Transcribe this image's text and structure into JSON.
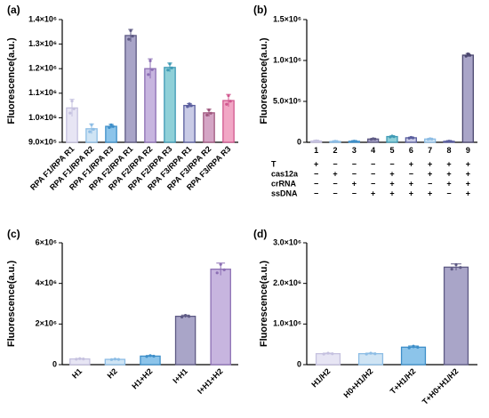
{
  "chart_data": [
    {
      "panel": "(a)",
      "type": "bar",
      "ylabel": "Fluorescence(a.u.)",
      "ylim": [
        900000,
        1400000
      ],
      "yticks": [
        900000,
        1000000,
        1100000,
        1200000,
        1300000,
        1400000
      ],
      "ytick_labels": [
        "9.0×10⁵",
        "1.0×10⁶",
        "1.1×10⁶",
        "1.2×10⁶",
        "1.3×10⁶",
        "1.4×10⁶"
      ],
      "categories": [
        "RPA F1/RPA R1",
        "RPA F1/RPA R2",
        "RPA F1/RPA R3",
        "RPA F2/RPA R1",
        "RPA F2/RPA R2",
        "RPA F2/RPA R3",
        "RPA F3/RPA R1",
        "RPA F3/RPA R2",
        "RPA F3/RPA R3"
      ],
      "values": [
        1040000,
        955000,
        965000,
        1335000,
        1200000,
        1205000,
        1050000,
        1020000,
        1070000
      ],
      "errors": [
        35000,
        20000,
        8000,
        25000,
        40000,
        18000,
        8000,
        15000,
        25000
      ],
      "colors": [
        "#e7e5f4",
        "#cfe4f4",
        "#8cc4ea",
        "#a9a5c8",
        "#c7b5df",
        "#8fd0d8",
        "#c9cbe6",
        "#d4a5c5",
        "#f1a7c5"
      ],
      "edge_colors": [
        "#c5c1df",
        "#8dbde5",
        "#3e8fc9",
        "#5e5a84",
        "#8c6fb4",
        "#3f9ab5",
        "#5a5e9e",
        "#a0587f",
        "#d1588f"
      ],
      "x_rotated_labels": true,
      "grid": false
    },
    {
      "panel": "(b)",
      "type": "bar",
      "ylabel": "Fluorescence(a.u.)",
      "ylim": [
        0,
        1500000
      ],
      "yticks": [
        0,
        500000,
        1000000,
        1500000
      ],
      "ytick_labels": [
        "0",
        "5.0×10⁵",
        "1.0×10⁶",
        "1.5×10⁶"
      ],
      "categories": [
        "1",
        "2",
        "3",
        "4",
        "5",
        "6",
        "7",
        "8",
        "9"
      ],
      "values": [
        15000,
        10000,
        12000,
        40000,
        70000,
        55000,
        40000,
        12000,
        1065000
      ],
      "errors": [
        3000,
        3000,
        3000,
        5000,
        8000,
        6000,
        5000,
        3000,
        20000
      ],
      "colors": [
        "#e7e5f4",
        "#cfe4f4",
        "#8cc4ea",
        "#a9a5c8",
        "#8fd0d8",
        "#c9cbe6",
        "#cfe4f4",
        "#c9cbe6",
        "#a9a5c8"
      ],
      "edge_colors": [
        "#c5c1df",
        "#8dbde5",
        "#3e8fc9",
        "#5e5a84",
        "#3f9ab5",
        "#5a5e9e",
        "#8dbde5",
        "#5a5e9e",
        "#4a466e"
      ],
      "condition_rows": [
        {
          "label": "T",
          "signs": [
            "+",
            "−",
            "−",
            "−",
            "−",
            "+",
            "+",
            "+",
            "+"
          ]
        },
        {
          "label": "cas12a",
          "signs": [
            "−",
            "+",
            "−",
            "−",
            "+",
            "−",
            "+",
            "+",
            "+"
          ]
        },
        {
          "label": "crRNA",
          "signs": [
            "−",
            "−",
            "+",
            "−",
            "+",
            "+",
            "−",
            "+",
            "+"
          ]
        },
        {
          "label": "ssDNA",
          "signs": [
            "−",
            "−",
            "−",
            "+",
            "+",
            "+",
            "+",
            "−",
            "+"
          ]
        }
      ],
      "grid": false
    },
    {
      "panel": "(c)",
      "type": "bar",
      "ylabel": "Fluorescence(a.u.)",
      "ylim": [
        0,
        6000000
      ],
      "yticks": [
        0,
        2000000,
        4000000,
        6000000
      ],
      "ytick_labels": [
        "0",
        "2×10⁶",
        "4×10⁶",
        "6×10⁶"
      ],
      "categories": [
        "H1",
        "H2",
        "H1+H2",
        "I+H1",
        "I+H1+H2"
      ],
      "values": [
        280000,
        260000,
        420000,
        2380000,
        4700000
      ],
      "errors": [
        20000,
        20000,
        30000,
        60000,
        300000
      ],
      "colors": [
        "#e7e5f4",
        "#cfe4f4",
        "#8cc4ea",
        "#a9a5c8",
        "#c7b5df"
      ],
      "edge_colors": [
        "#c5c1df",
        "#8dbde5",
        "#3e8fc9",
        "#5e5a84",
        "#8c6fb4"
      ],
      "x_rotated_labels": true,
      "grid": false
    },
    {
      "panel": "(d)",
      "type": "bar",
      "ylabel": "Fluorescence(a.u.)",
      "ylim": [
        0,
        3000000
      ],
      "yticks": [
        0,
        1000000,
        2000000,
        3000000
      ],
      "ytick_labels": [
        "0",
        "1.0×10⁶",
        "2.0×10⁶",
        "3.0×10⁶"
      ],
      "categories": [
        "H1/H2",
        "H0+H1/H2",
        "T+H1/H2",
        "T+H0+H1/H2"
      ],
      "values": [
        270000,
        270000,
        430000,
        2400000
      ],
      "errors": [
        15000,
        15000,
        30000,
        80000
      ],
      "colors": [
        "#e7e5f4",
        "#cfe4f4",
        "#8cc4ea",
        "#a9a5c8"
      ],
      "edge_colors": [
        "#c5c1df",
        "#8dbde5",
        "#3e8fc9",
        "#5e5a84"
      ],
      "x_rotated_labels": true,
      "grid": false
    }
  ]
}
